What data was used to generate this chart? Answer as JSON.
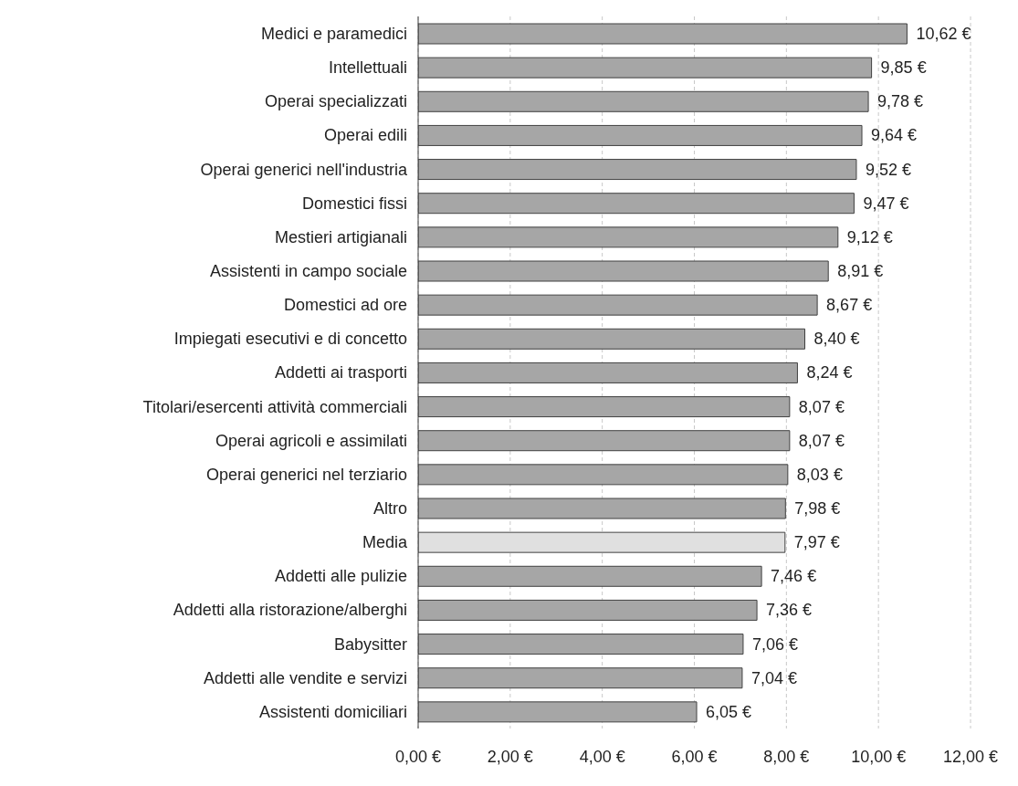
{
  "chart_data": {
    "type": "bar",
    "orientation": "horizontal",
    "categories": [
      "Medici e paramedici",
      "Intellettuali",
      "Operai specializzati",
      "Operai edili",
      "Operai generici nell'industria",
      "Domestici fissi",
      "Mestieri artigianali",
      "Assistenti in campo sociale",
      "Domestici ad ore",
      "Impiegati esecutivi e di concetto",
      "Addetti ai trasporti",
      "Titolari/esercenti attività commerciali",
      "Operai agricoli e assimilati",
      "Operai generici nel terziario",
      "Altro",
      "Media",
      "Addetti alle pulizie",
      "Addetti alla ristorazione/alberghi",
      "Babysitter",
      "Addetti alle vendite e servizi",
      "Assistenti domiciliari"
    ],
    "values": [
      10.62,
      9.85,
      9.78,
      9.64,
      9.52,
      9.47,
      9.12,
      8.91,
      8.67,
      8.4,
      8.24,
      8.07,
      8.07,
      8.03,
      7.98,
      7.97,
      7.46,
      7.36,
      7.06,
      7.04,
      6.05
    ],
    "value_labels": [
      "10,62 €",
      "9,85 €",
      "9,78 €",
      "9,64 €",
      "9,52 €",
      "9,47 €",
      "9,12 €",
      "8,91 €",
      "8,67 €",
      "8,40 €",
      "8,24 €",
      "8,07 €",
      "8,07 €",
      "8,03 €",
      "7,98 €",
      "7,97 €",
      "7,46 €",
      "7,36 €",
      "7,06 €",
      "7,04 €",
      "6,05 €"
    ],
    "colors": [
      "#a6a6a6",
      "#a6a6a6",
      "#a6a6a6",
      "#a6a6a6",
      "#a6a6a6",
      "#a6a6a6",
      "#a6a6a6",
      "#a6a6a6",
      "#a6a6a6",
      "#a6a6a6",
      "#a6a6a6",
      "#a6a6a6",
      "#a6a6a6",
      "#a6a6a6",
      "#a6a6a6",
      "#e0e0e0",
      "#a6a6a6",
      "#a6a6a6",
      "#a6a6a6",
      "#a6a6a6",
      "#a6a6a6"
    ],
    "xlim": [
      0,
      12
    ],
    "xticks": [
      {
        "value": 0,
        "label": "0,00 €"
      },
      {
        "value": 2,
        "label": "2,00 €"
      },
      {
        "value": 4,
        "label": "4,00 €"
      },
      {
        "value": 6,
        "label": "6,00 €"
      },
      {
        "value": 8,
        "label": "8,00 €"
      },
      {
        "value": 10,
        "label": "10,00 €"
      },
      {
        "value": 12,
        "label": "12,00 €"
      }
    ],
    "grid": "x"
  }
}
